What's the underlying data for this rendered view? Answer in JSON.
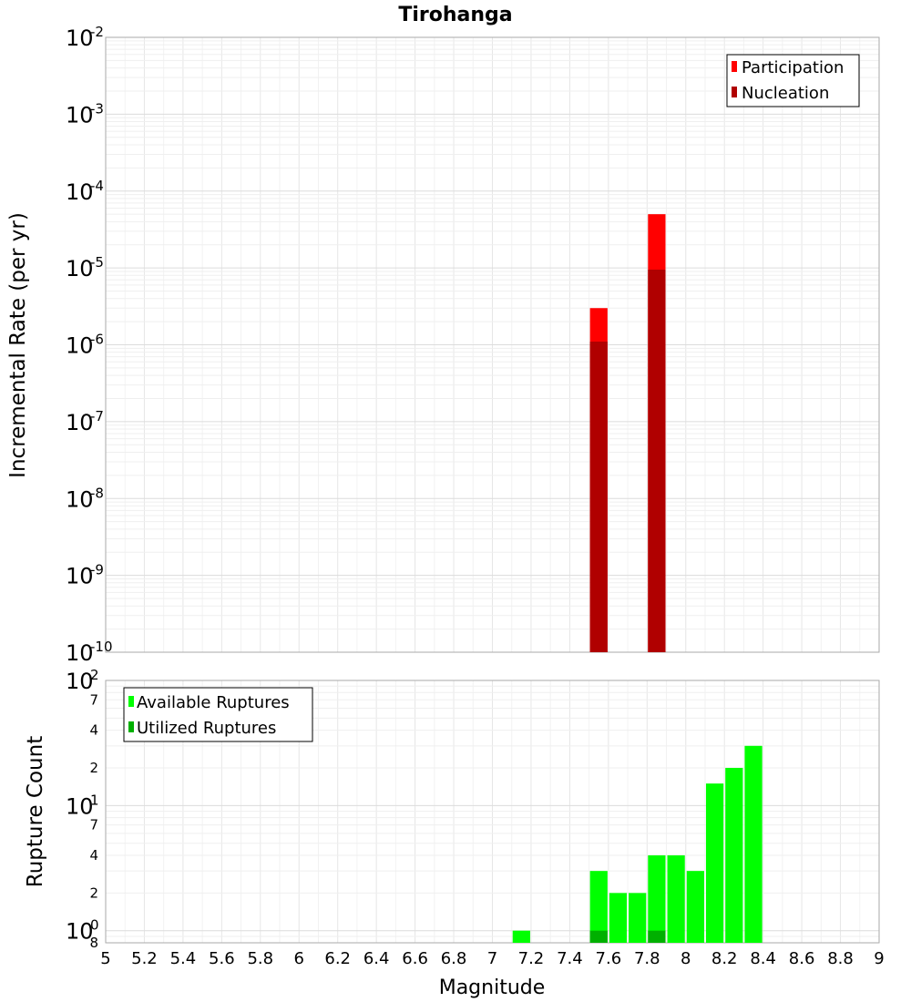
{
  "chart_data": [
    {
      "type": "bar",
      "title": "Tirohanga",
      "ylabel": "Incremental Rate (per yr)",
      "xlabel": "",
      "yscale": "log",
      "ylim": [
        1e-10,
        0.01
      ],
      "xlim": [
        5,
        9
      ],
      "bin_width": 0.1,
      "y_ticks": [
        {
          "base": "10",
          "exp": "-10",
          "value": 1e-10
        },
        {
          "base": "10",
          "exp": "-9",
          "value": 1e-09
        },
        {
          "base": "10",
          "exp": "-8",
          "value": 1e-08
        },
        {
          "base": "10",
          "exp": "-7",
          "value": 1e-07
        },
        {
          "base": "10",
          "exp": "-6",
          "value": 1e-06
        },
        {
          "base": "10",
          "exp": "-5",
          "value": 1e-05
        },
        {
          "base": "10",
          "exp": "-4",
          "value": 0.0001
        },
        {
          "base": "10",
          "exp": "-3",
          "value": 0.001
        },
        {
          "base": "10",
          "exp": "-2",
          "value": 0.01
        }
      ],
      "series": [
        {
          "name": "Participation",
          "color": "#ff0000",
          "x": [
            7.55,
            7.85
          ],
          "values": [
            3e-06,
            5e-05
          ]
        },
        {
          "name": "Nucleation",
          "color": "#b00000",
          "x": [
            7.55,
            7.85
          ],
          "values": [
            1.1e-06,
            9.5e-06
          ]
        }
      ],
      "legend": {
        "position": "top-right"
      },
      "grid": true
    },
    {
      "type": "bar",
      "ylabel": "Rupture Count",
      "xlabel": "Magnitude",
      "yscale": "log",
      "ylim": [
        0.8,
        100
      ],
      "xlim": [
        5,
        9
      ],
      "bin_width": 0.1,
      "x_ticks": [
        "5",
        "5.2",
        "5.4",
        "5.6",
        "5.8",
        "6",
        "6.2",
        "6.4",
        "6.6",
        "6.8",
        "7",
        "7.2",
        "7.4",
        "7.6",
        "7.8",
        "8",
        "8.2",
        "8.4",
        "8.6",
        "8.8",
        "9"
      ],
      "y_ticks": [
        {
          "base": "10",
          "exp": "0",
          "value": 1
        },
        {
          "base": "10",
          "exp": "1",
          "value": 10
        },
        {
          "base": "10",
          "exp": "2",
          "value": 100
        }
      ],
      "y_minor_ticks": [
        {
          "label": "8",
          "value": 0.8
        },
        {
          "label": "2",
          "value": 2
        },
        {
          "label": "4",
          "value": 4
        },
        {
          "label": "7",
          "value": 7
        },
        {
          "label": "2",
          "value": 20
        },
        {
          "label": "4",
          "value": 40
        },
        {
          "label": "7",
          "value": 70
        }
      ],
      "series": [
        {
          "name": "Available Ruptures",
          "color": "#00ff00",
          "x": [
            7.15,
            7.55,
            7.65,
            7.75,
            7.85,
            7.95,
            8.05,
            8.15,
            8.25,
            8.35
          ],
          "values": [
            1,
            3,
            2,
            2,
            4,
            4,
            3,
            15,
            20,
            30
          ]
        },
        {
          "name": "Utilized Ruptures",
          "color": "#00b000",
          "x": [
            7.55,
            7.85
          ],
          "values": [
            1,
            1
          ]
        }
      ],
      "legend": {
        "position": "top-left"
      },
      "grid": true
    }
  ]
}
